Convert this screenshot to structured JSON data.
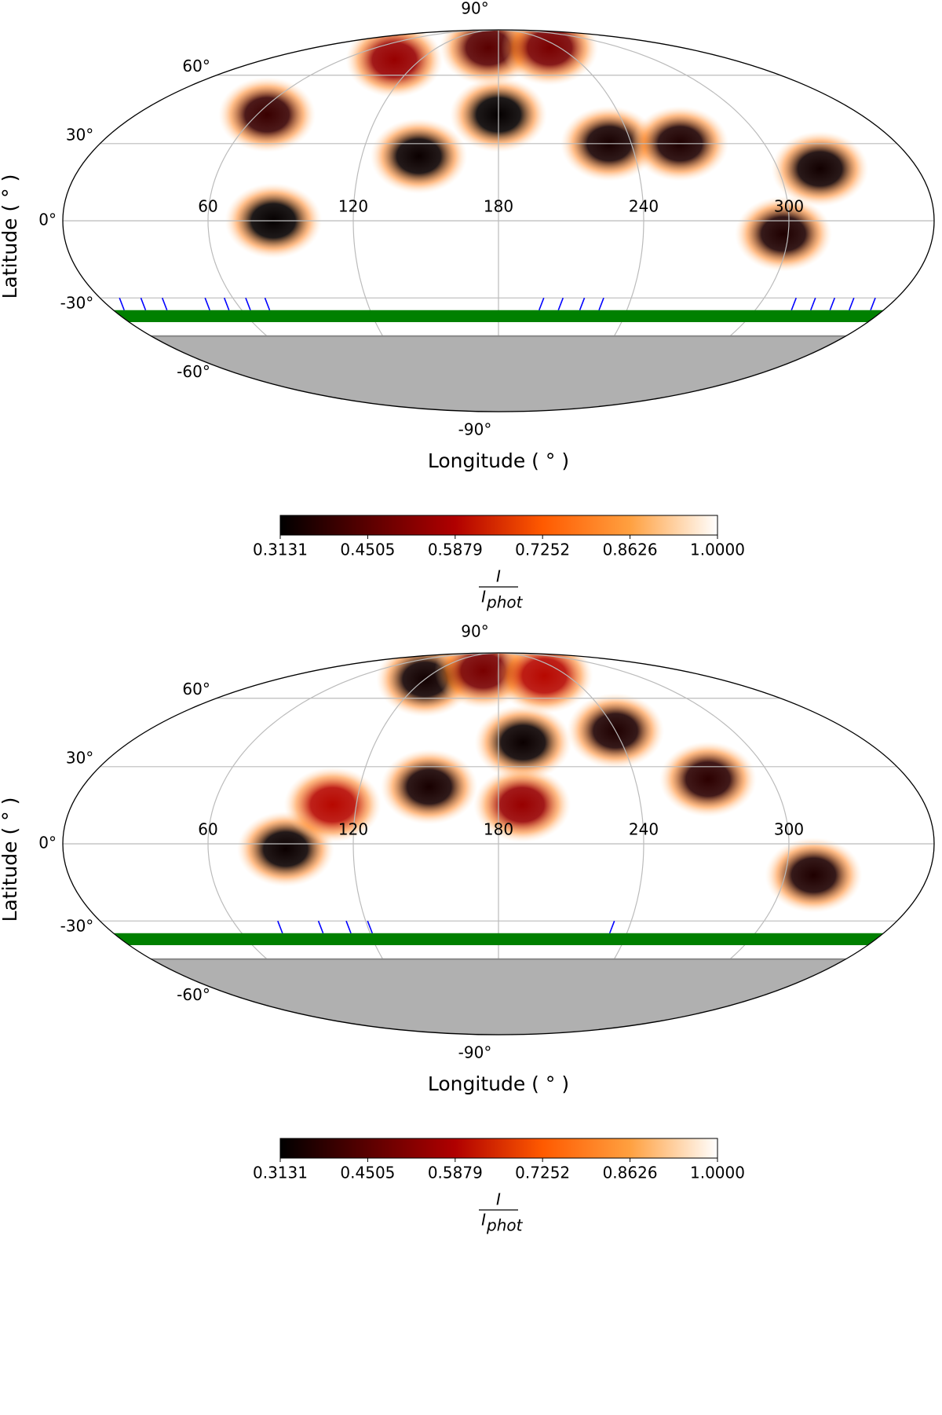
{
  "chart_data": [
    {
      "type": "mollweide",
      "xlabel": "Longitude ( ° )",
      "ylabel": "Latitude ( ° )",
      "xlim": [
        0,
        360
      ],
      "ylim": [
        -90,
        90
      ],
      "xticks": [
        60,
        120,
        180,
        240,
        300
      ],
      "yticks": [
        {
          "value": -90,
          "label": "-90°"
        },
        {
          "value": -60,
          "label": "-60°"
        },
        {
          "value": -30,
          "label": "-30°"
        },
        {
          "value": 0,
          "label": "0°"
        },
        {
          "value": 30,
          "label": "30°"
        },
        {
          "value": 60,
          "label": "60°"
        },
        {
          "value": 90,
          "label": "90°"
        }
      ],
      "grid": true,
      "spots": [
        {
          "lon": 87,
          "lat": 0,
          "value": 0.32
        },
        {
          "lon": 145,
          "lat": 25,
          "value": 0.33
        },
        {
          "lon": 180,
          "lat": 42,
          "value": 0.32
        },
        {
          "lon": 230,
          "lat": 30,
          "value": 0.35
        },
        {
          "lon": 262,
          "lat": 30,
          "value": 0.36
        },
        {
          "lon": 318,
          "lat": 20,
          "value": 0.34
        },
        {
          "lon": 298,
          "lat": -5,
          "value": 0.36
        },
        {
          "lon": 65,
          "lat": 42,
          "value": 0.4
        },
        {
          "lon": 170,
          "lat": 75,
          "value": 0.45
        },
        {
          "lon": 230,
          "lat": 75,
          "value": 0.5
        },
        {
          "lon": 100,
          "lat": 68,
          "value": 0.55
        }
      ],
      "band": {
        "lat": [
          -40,
          -35
        ],
        "color": "#008000"
      },
      "unobserved_below": -46,
      "unobserved_color": "#b0b0b0",
      "phase_marks": {
        "lon": [
          5,
          15,
          25,
          45,
          54,
          64,
          73,
          199,
          208,
          218,
          227,
          317,
          326,
          335,
          344,
          354
        ],
        "color": "#0000ff"
      },
      "colorbar": {
        "clim": [
          0.3131,
          1
        ],
        "ticks": [
          0.3131,
          0.4505,
          0.5879,
          0.7252,
          0.8626,
          {
            "value": 1,
            "label": "1.0000"
          }
        ],
        "colors": [
          "#000000",
          "#5a0000",
          "#b00000",
          "#ff5a00",
          "#ffa040",
          "#ffffff"
        ],
        "label": {
          "numerator": "I",
          "denominator": "I",
          "denominator_subscript": "phot"
        }
      }
    },
    {
      "type": "mollweide",
      "xlabel": "Longitude ( ° )",
      "ylabel": "Latitude ( ° )",
      "xlim": [
        0,
        360
      ],
      "ylim": [
        -90,
        90
      ],
      "xticks": [
        60,
        120,
        180,
        240,
        300
      ],
      "yticks": [
        {
          "value": -90,
          "label": "-90°"
        },
        {
          "value": -60,
          "label": "-60°"
        },
        {
          "value": -30,
          "label": "-30°"
        },
        {
          "value": 0,
          "label": "0°"
        },
        {
          "value": 30,
          "label": "30°"
        },
        {
          "value": 60,
          "label": "60°"
        },
        {
          "value": 90,
          "label": "90°"
        }
      ],
      "grid": true,
      "spots": [
        {
          "lon": 92,
          "lat": -2,
          "value": 0.33
        },
        {
          "lon": 150,
          "lat": 22,
          "value": 0.35
        },
        {
          "lon": 192,
          "lat": 40,
          "value": 0.33
        },
        {
          "lon": 240,
          "lat": 45,
          "value": 0.36
        },
        {
          "lon": 272,
          "lat": 25,
          "value": 0.38
        },
        {
          "lon": 312,
          "lat": -12,
          "value": 0.36
        },
        {
          "lon": 120,
          "lat": 70,
          "value": 0.34
        },
        {
          "lon": 165,
          "lat": 75,
          "value": 0.5
        },
        {
          "lon": 220,
          "lat": 72,
          "value": 0.6
        },
        {
          "lon": 190,
          "lat": 15,
          "value": 0.55
        },
        {
          "lon": 110,
          "lat": 15,
          "value": 0.6
        }
      ],
      "band": {
        "lat": [
          -40,
          -35
        ],
        "color": "#008000"
      },
      "unobserved_below": -46,
      "unobserved_color": "#b0b0b0",
      "phase_marks": {
        "lon": [
          79,
          98,
          111,
          121,
          232
        ],
        "color": "#0000ff"
      },
      "colorbar": {
        "clim": [
          0.3131,
          1
        ],
        "ticks": [
          0.3131,
          0.4505,
          0.5879,
          0.7252,
          0.8626,
          {
            "value": 1,
            "label": "1.0000"
          }
        ],
        "colors": [
          "#000000",
          "#5a0000",
          "#b00000",
          "#ff5a00",
          "#ffa040",
          "#ffffff"
        ],
        "label": {
          "numerator": "I",
          "denominator": "I",
          "denominator_subscript": "phot"
        }
      }
    }
  ]
}
